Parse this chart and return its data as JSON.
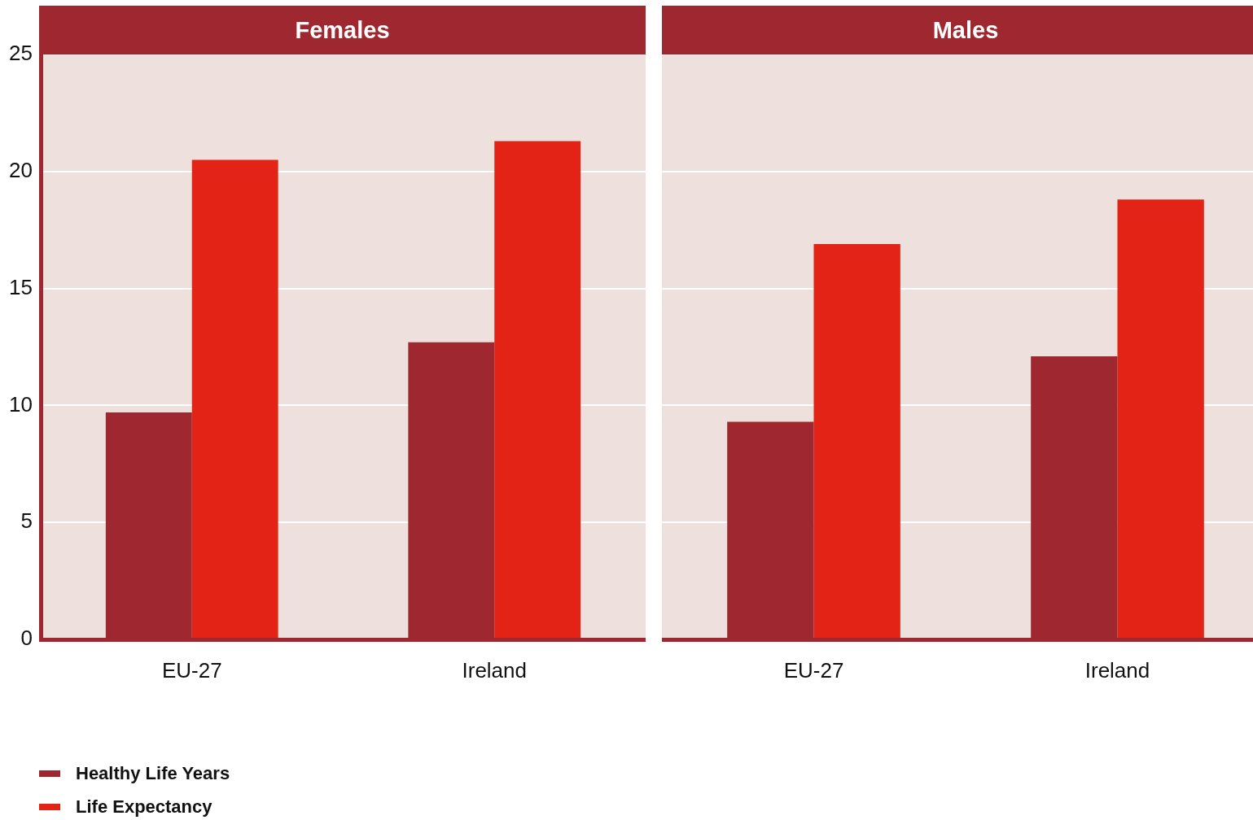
{
  "chart_data": [
    {
      "type": "bar",
      "title": "Females",
      "categories": [
        "EU-27",
        "Ireland"
      ],
      "series": [
        {
          "name": "Healthy Life Years",
          "color": "#9e2730",
          "values": [
            9.7,
            12.7
          ]
        },
        {
          "name": "Life Expectancy",
          "color": "#e22315",
          "values": [
            20.5,
            21.3
          ]
        }
      ],
      "ylim": [
        0,
        25
      ],
      "yticks": [
        0,
        5,
        10,
        15,
        20,
        25
      ],
      "grid": "y",
      "legend": "bottom left"
    },
    {
      "type": "bar",
      "title": "Males",
      "categories": [
        "EU-27",
        "Ireland"
      ],
      "series": [
        {
          "color": "#9e2730",
          "values": [
            9.3,
            12.1
          ]
        },
        {
          "color": "#e22315",
          "values": [
            16.9,
            18.8
          ]
        }
      ],
      "ylim": [
        0,
        25
      ],
      "yticks": [
        0,
        5,
        10,
        15,
        20,
        25
      ],
      "grid": "y",
      "tick_labels": "x",
      "legend": false
    }
  ]
}
